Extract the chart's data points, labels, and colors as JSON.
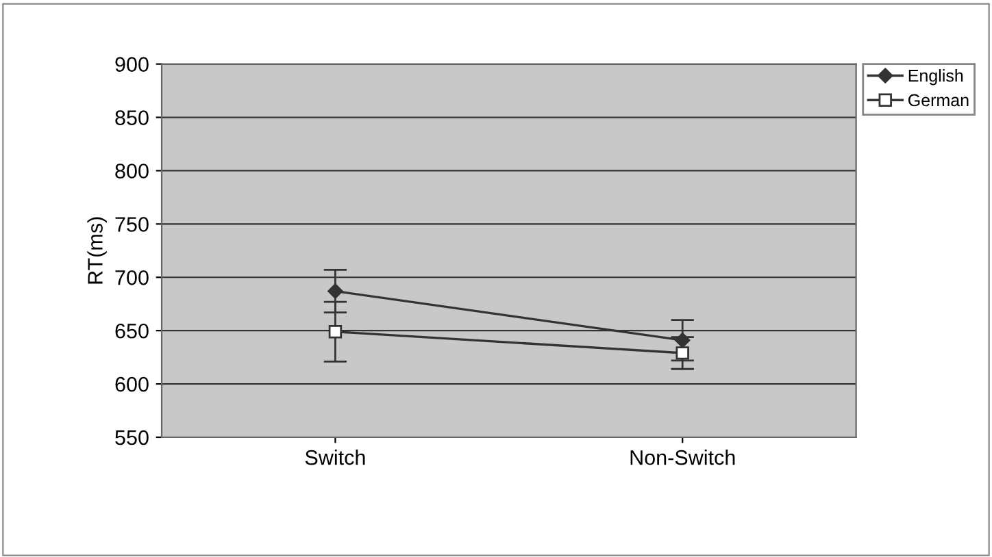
{
  "chart_data": {
    "type": "line",
    "ylabel": "RT(ms)",
    "categories": [
      "Switch",
      "Non-Switch"
    ],
    "series": [
      {
        "name": "English",
        "color": "#333333",
        "marker": "diamond",
        "values": [
          687,
          641
        ],
        "errors": [
          20,
          19
        ]
      },
      {
        "name": "German",
        "color": "#333333",
        "marker": "square",
        "values": [
          649,
          629
        ],
        "errors": [
          28,
          15
        ]
      }
    ],
    "ylim": [
      550,
      900
    ],
    "yticks": [
      550,
      600,
      650,
      700,
      750,
      800,
      850,
      900
    ],
    "grid": "y",
    "legend": "top right"
  }
}
